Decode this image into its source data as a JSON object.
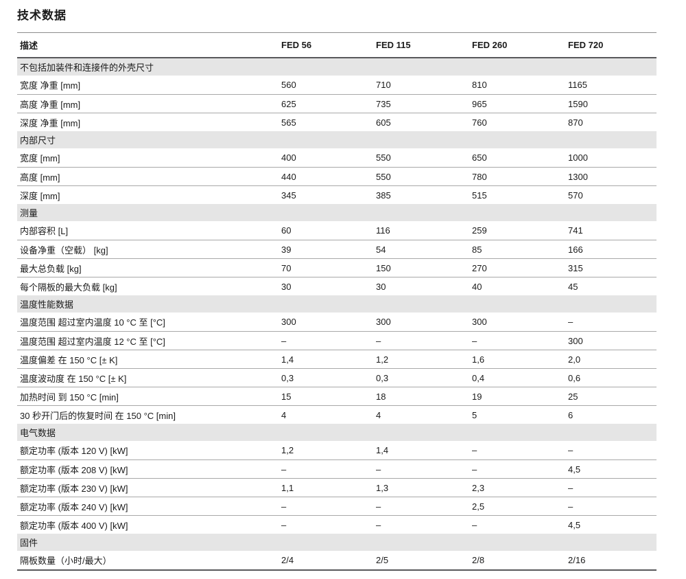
{
  "page_title": "技术数据",
  "colors": {
    "section_bg": "#e5e5e5",
    "border_dark": "#58585a",
    "border_light": "#a8a8a8"
  },
  "table": {
    "header": {
      "description_label": "描述",
      "columns": [
        "FED 56",
        "FED 115",
        "FED 260",
        "FED 720"
      ]
    },
    "sections": [
      {
        "title": "不包括加装件和连接件的外壳尺寸",
        "rows": [
          {
            "label": "宽度 净重 [mm]",
            "values": [
              "560",
              "710",
              "810",
              "1165"
            ]
          },
          {
            "label": "高度 净重 [mm]",
            "values": [
              "625",
              "735",
              "965",
              "1590"
            ]
          },
          {
            "label": "深度 净重 [mm]",
            "values": [
              "565",
              "605",
              "760",
              "870"
            ]
          }
        ]
      },
      {
        "title": "内部尺寸",
        "rows": [
          {
            "label": "宽度 [mm]",
            "values": [
              "400",
              "550",
              "650",
              "1000"
            ]
          },
          {
            "label": "高度 [mm]",
            "values": [
              "440",
              "550",
              "780",
              "1300"
            ]
          },
          {
            "label": "深度 [mm]",
            "values": [
              "345",
              "385",
              "515",
              "570"
            ]
          }
        ]
      },
      {
        "title": "测量",
        "rows": [
          {
            "label": "内部容积 [L]",
            "values": [
              "60",
              "116",
              "259",
              "741"
            ]
          },
          {
            "label": "设备净重（空载） [kg]",
            "values": [
              "39",
              "54",
              "85",
              "166"
            ]
          },
          {
            "label": "最大总负载 [kg]",
            "values": [
              "70",
              "150",
              "270",
              "315"
            ]
          },
          {
            "label": "每个隔板的最大负载 [kg]",
            "values": [
              "30",
              "30",
              "40",
              "45"
            ]
          }
        ]
      },
      {
        "title": "温度性能数据",
        "rows": [
          {
            "label": "温度范围 超过室内温度 10 °C 至 [°C]",
            "values": [
              "300",
              "300",
              "300",
              "–"
            ]
          },
          {
            "label": "温度范围 超过室内温度 12 °C 至 [°C]",
            "values": [
              "–",
              "–",
              "–",
              "300"
            ]
          },
          {
            "label": "温度偏差 在 150 °C [± K]",
            "values": [
              "1,4",
              "1,2",
              "1,6",
              "2,0"
            ]
          },
          {
            "label": "温度波动度 在 150 °C [± K]",
            "values": [
              "0,3",
              "0,3",
              "0,4",
              "0,6"
            ]
          },
          {
            "label": "加热时间 到 150 °C [min]",
            "values": [
              "15",
              "18",
              "19",
              "25"
            ]
          },
          {
            "label": "30 秒开门后的恢复时间 在 150 °C [min]",
            "values": [
              "4",
              "4",
              "5",
              "6"
            ]
          }
        ]
      },
      {
        "title": "电气数据",
        "rows": [
          {
            "label": "额定功率 (版本 120 V) [kW]",
            "values": [
              "1,2",
              "1,4",
              "–",
              "–"
            ]
          },
          {
            "label": "额定功率 (版本 208 V) [kW]",
            "values": [
              "–",
              "–",
              "–",
              "4,5"
            ]
          },
          {
            "label": "额定功率 (版本 230 V) [kW]",
            "values": [
              "1,1",
              "1,3",
              "2,3",
              "–"
            ]
          },
          {
            "label": "额定功率 (版本 240 V) [kW]",
            "values": [
              "–",
              "–",
              "2,5",
              "–"
            ]
          },
          {
            "label": "额定功率 (版本 400 V) [kW]",
            "values": [
              "–",
              "–",
              "–",
              "4,5"
            ]
          }
        ]
      },
      {
        "title": "固件",
        "rows": [
          {
            "label": "隔板数量（小时/最大）",
            "values": [
              "2/4",
              "2/5",
              "2/8",
              "2/16"
            ]
          }
        ]
      }
    ]
  }
}
